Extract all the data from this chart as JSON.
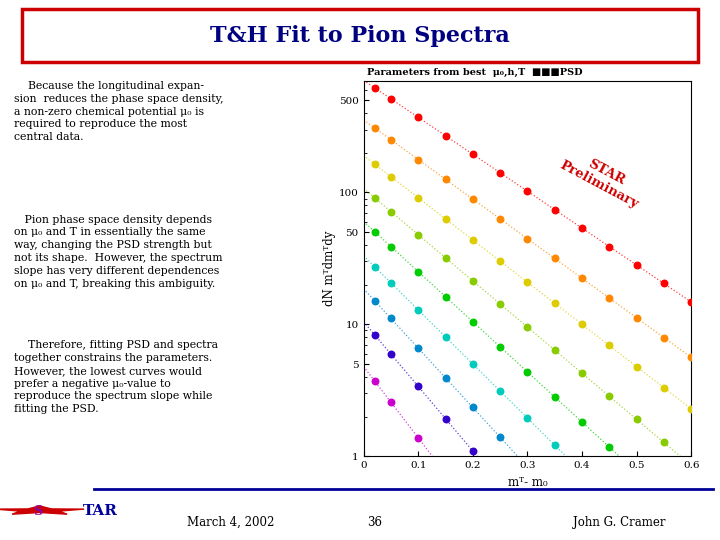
{
  "title": "T&H Fit to Pion Spectra",
  "title_color": "#000080",
  "title_fontsize": 16,
  "bg_color": "#ffffff",
  "border_color": "#cc0000",
  "text_blocks": [
    "    Because the longitudinal expan-\nsion  reduces the phase space density,\na non-zero chemical potential μ₀ is\nrequired to reproduce the most\ncentral data.",
    "   Pion phase space density depends\non μ₀ and T in essentially the same\nway, changing the PSD strength but\nnot its shape.  However, the spectrum\nslope has very different dependences\non μ₀ and T, breaking this ambiguity.",
    "    Therefore, fitting PSD and spectra\ntogether constrains the parameters.\nHowever, the lowest curves would\nprefer a negative μ₀-value to\nreproduce the spectrum slope while\nfitting the PSD."
  ],
  "plot_legend_title": "Parameters from best  μ₀,h,T  ■■■PSD",
  "xlabel": "mᵀ- m₀",
  "ylabel": "dN mᵀdmᵀdy",
  "xlim": [
    0,
    0.6
  ],
  "ylim_log": [
    1,
    700
  ],
  "yticks": [
    1,
    5,
    10,
    50,
    100,
    500
  ],
  "ytick_labels": [
    "1",
    "5",
    "10",
    "50",
    "100",
    "500"
  ],
  "xticks": [
    0,
    0.1,
    0.2,
    0.3,
    0.4,
    0.5,
    0.6
  ],
  "num_series": 9,
  "series_colors": [
    "#ff0000",
    "#ff8800",
    "#ddcc00",
    "#88cc00",
    "#00cc00",
    "#00ccbb",
    "#0088cc",
    "#3300cc",
    "#cc00cc"
  ],
  "series_offsets": [
    2.85,
    2.55,
    2.28,
    2.03,
    1.78,
    1.52,
    1.27,
    1.02,
    0.68
  ],
  "series_slopes": [
    -2.8,
    -3.0,
    -3.2,
    -3.5,
    -3.8,
    -4.1,
    -4.5,
    -4.9,
    -5.4
  ],
  "dot_x_positions": [
    0.02,
    0.05,
    0.1,
    0.15,
    0.2,
    0.25,
    0.3,
    0.35,
    0.4,
    0.45,
    0.5,
    0.55,
    0.6
  ],
  "footer_date": "March 4, 2002",
  "footer_page": "36",
  "footer_author": "John G. Cramer",
  "star_color": "#cc0000",
  "star_label_color": "#cc00cc"
}
